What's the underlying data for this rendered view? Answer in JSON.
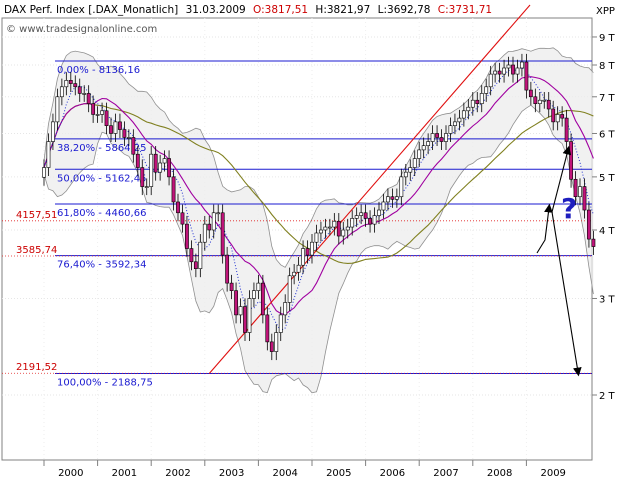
{
  "header": {
    "symbol": "DAX Perf. Index [.DAX_Monatlich]",
    "date": "31.03.2009",
    "open_label": "O:3817,51",
    "high_label": "H:3821,97",
    "low_label": "L:3692,78",
    "close_label": "C:3731,71"
  },
  "watermark": "© www.tradesignalonline.com",
  "y_axis_label": "XPP",
  "chart_data": {
    "type": "candlestick",
    "title": "DAX Perf. Index [.DAX_Monatlich]",
    "x_ticks": [
      "2000",
      "2001",
      "2002",
      "2003",
      "2004",
      "2005",
      "2006",
      "2007",
      "2008",
      "2009"
    ],
    "y_ticks": [
      {
        "label": "9 T",
        "value": 9000
      },
      {
        "label": "8 T",
        "value": 8000
      },
      {
        "label": "7 T",
        "value": 7000
      },
      {
        "label": "6 T",
        "value": 6000
      },
      {
        "label": "5 T",
        "value": 5000
      },
      {
        "label": "4 T",
        "value": 4000
      },
      {
        "label": "3 T",
        "value": 3000
      },
      {
        "label": "2 T",
        "value": 2000
      }
    ],
    "y_scale": "log",
    "ylim": [
      1500,
      9800
    ],
    "fib_levels": [
      {
        "label": "0,00% - 8136,16",
        "value": 8136.16
      },
      {
        "label": "38,20% - 5864,25",
        "value": 5864.25
      },
      {
        "label": "50,00% - 5162,45",
        "value": 5162.45
      },
      {
        "label": "61,80% - 4460,66",
        "value": 4460.66
      },
      {
        "label": "76,40% - 3592,34",
        "value": 3592.34
      },
      {
        "label": "100,00% - 2188,75",
        "value": 2188.75
      }
    ],
    "price_marks": [
      {
        "label": "4157,51",
        "value": 4157.51
      },
      {
        "label": "3585,74",
        "value": 3585.74
      },
      {
        "label": "2191,52",
        "value": 2191.52
      }
    ],
    "annotation": "?",
    "legend": "none",
    "grid": true,
    "monthly_close": [
      5200,
      5800,
      6300,
      7000,
      7300,
      7500,
      7400,
      7300,
      7100,
      7100,
      6800,
      6500,
      6500,
      6600,
      6200,
      6000,
      6300,
      6100,
      5900,
      5900,
      5500,
      5200,
      4800,
      4800,
      5500,
      5100,
      5300,
      5400,
      5000,
      4500,
      4300,
      4100,
      3700,
      3500,
      3400,
      3800,
      4100,
      4000,
      4300,
      4300,
      3600,
      3200,
      3100,
      2800,
      2900,
      2600,
      3000,
      3100,
      3200,
      2800,
      2500,
      2400,
      2600,
      2800,
      2950,
      3300,
      3350,
      3450,
      3700,
      3600,
      3800,
      3950,
      4000,
      4050,
      4050,
      4150,
      3900,
      4000,
      4050,
      4200,
      4250,
      4300,
      4200,
      4100,
      4250,
      4350,
      4500,
      4600,
      4550,
      4600,
      5000,
      5100,
      5200,
      5400,
      5600,
      5700,
      5800,
      6000,
      5900,
      5800,
      6000,
      6200,
      6300,
      6400,
      6600,
      6700,
      6900,
      6800,
      7100,
      7300,
      7700,
      7800,
      7700,
      7900,
      8000,
      7700,
      7900,
      8100,
      7200,
      7000,
      6800,
      6900,
      6900,
      6650,
      6300,
      6500,
      6400,
      5800,
      4950,
      4600,
      4800,
      4350,
      3850,
      3731
    ]
  }
}
